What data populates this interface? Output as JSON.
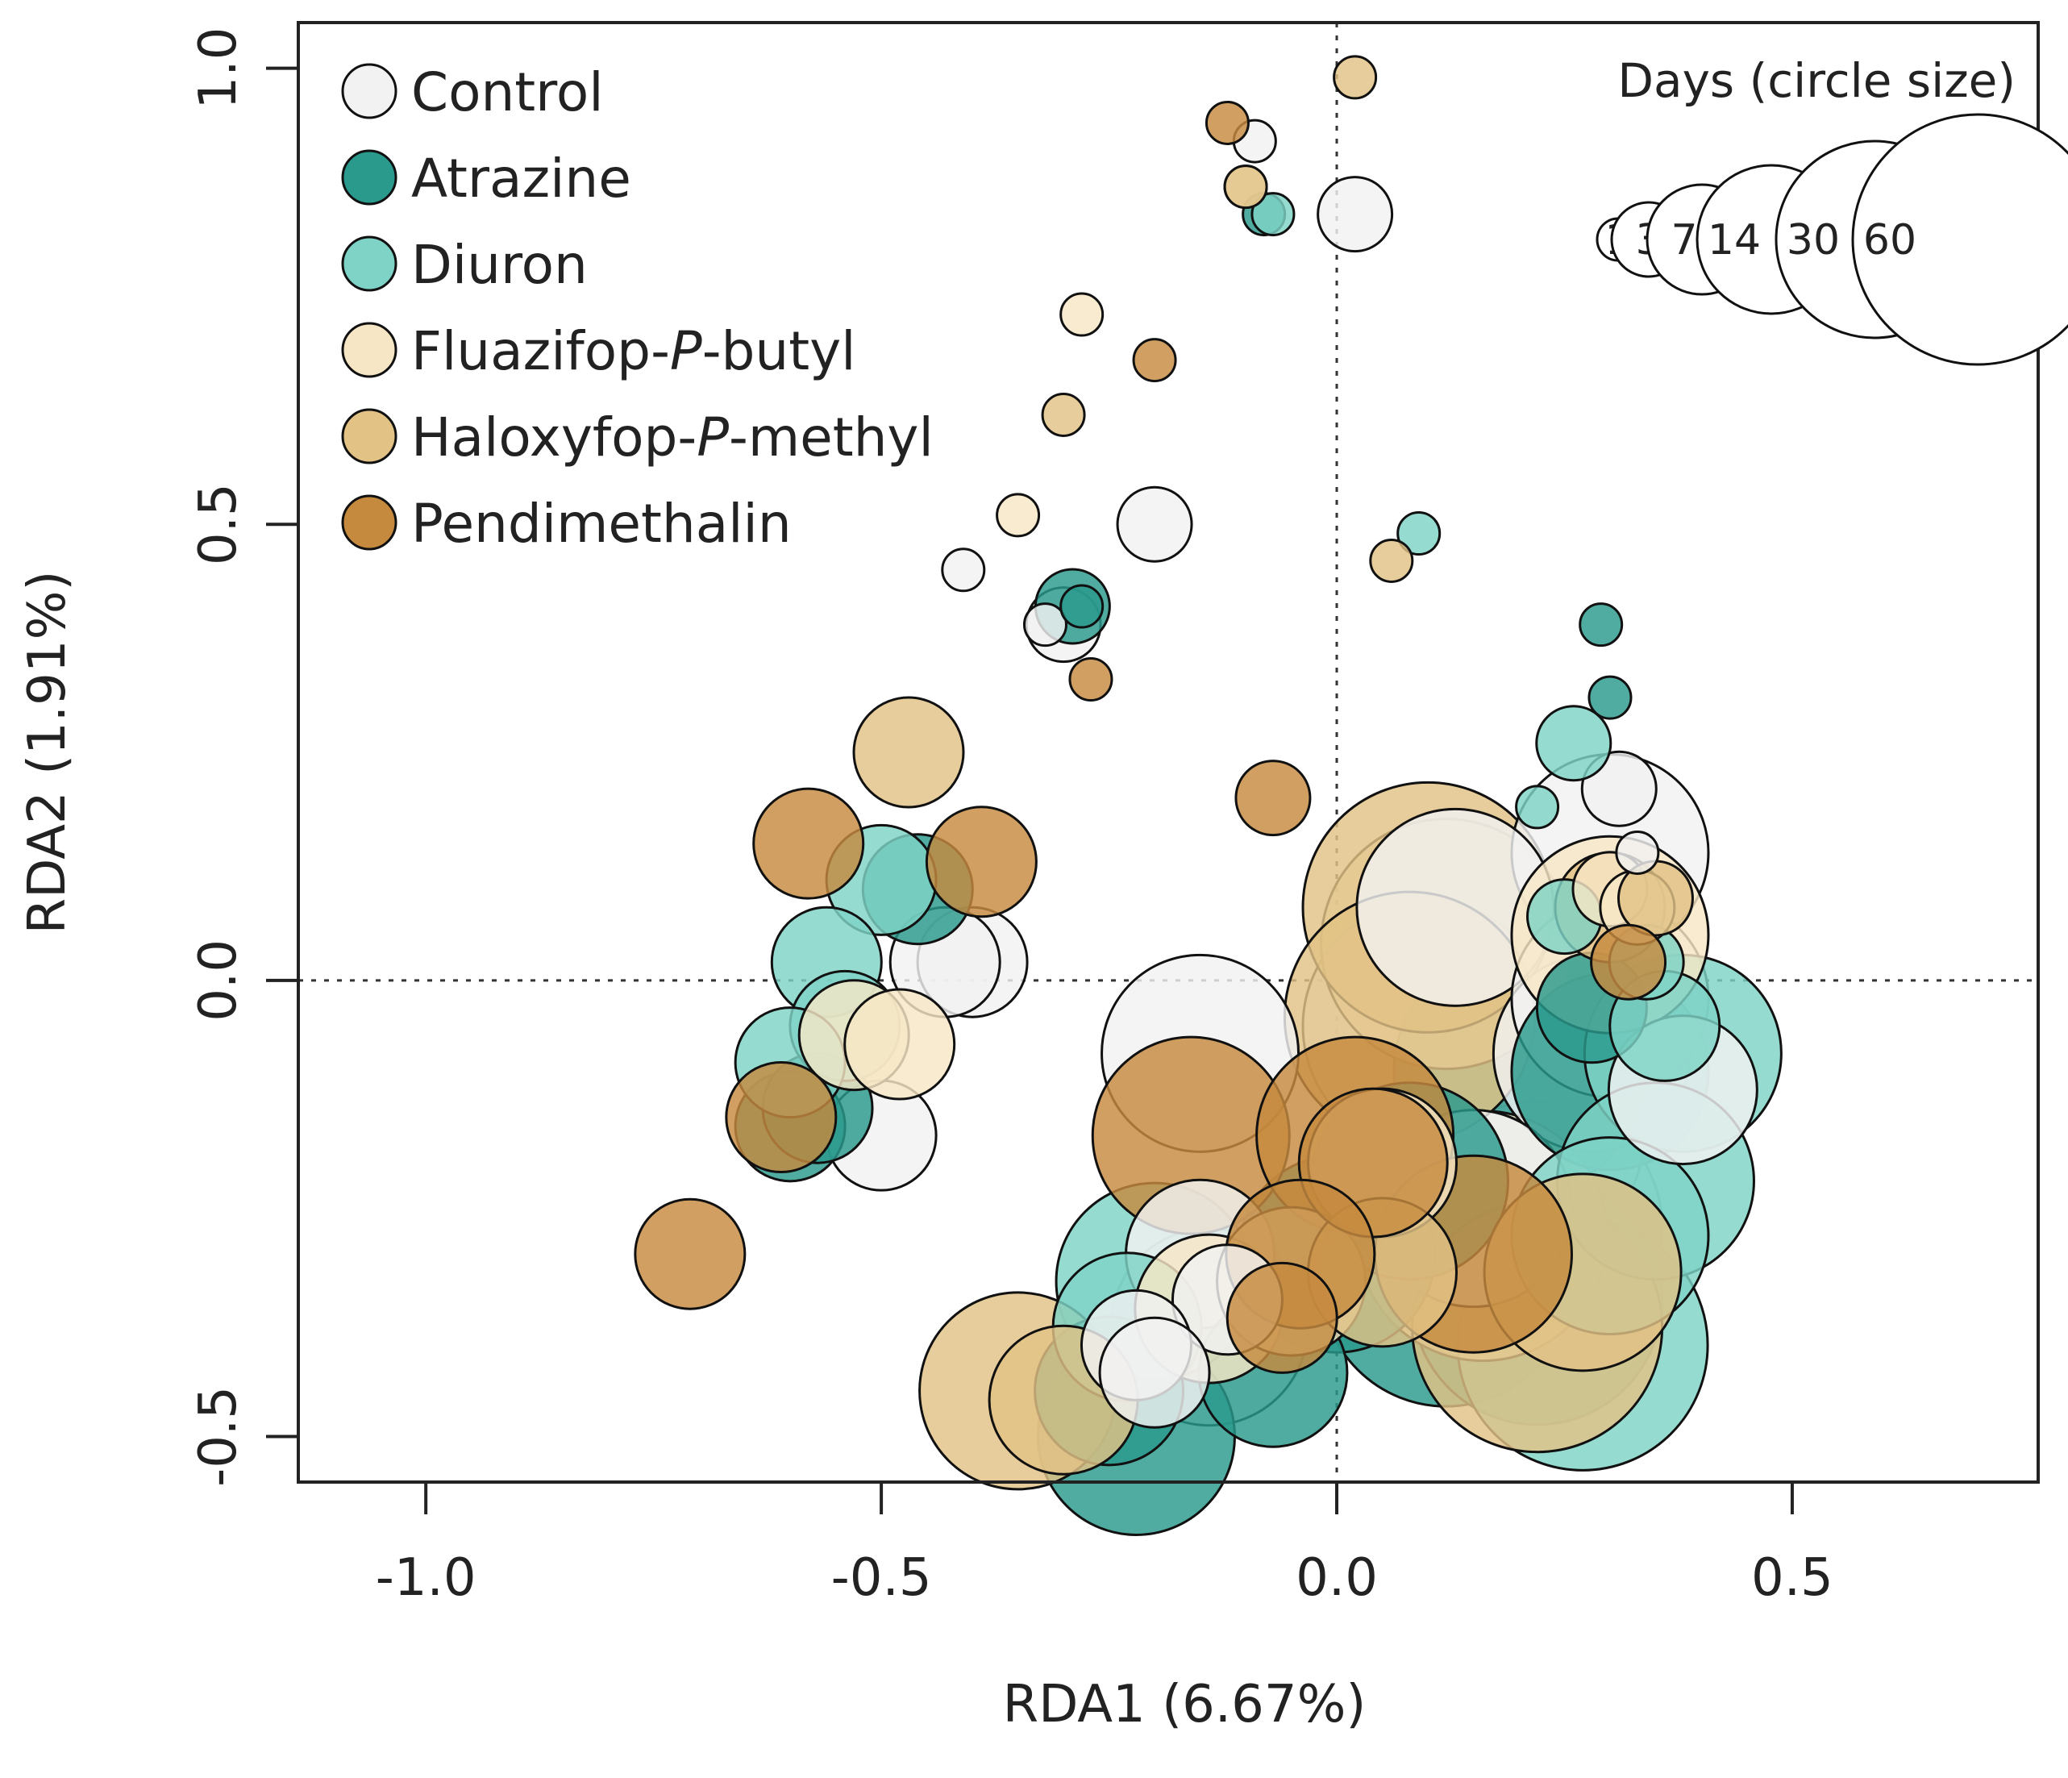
{
  "chart_data": {
    "type": "scatter",
    "xlabel": "RDA1 (6.67%)",
    "ylabel": "RDA2 (1.91%)",
    "xlim": [
      -1.14,
      0.77
    ],
    "ylim": [
      -0.55,
      1.05
    ],
    "x_ticks": [
      {
        "value": -1.0,
        "label": "-1.0"
      },
      {
        "value": -0.5,
        "label": "-0.5"
      },
      {
        "value": 0.0,
        "label": "0.0"
      },
      {
        "value": 0.5,
        "label": "0.5"
      }
    ],
    "y_ticks": [
      {
        "value": -0.5,
        "label": "-0.5"
      },
      {
        "value": 0.0,
        "label": "0.0"
      },
      {
        "value": 0.5,
        "label": "0.5"
      },
      {
        "value": 1.0,
        "label": "1.0"
      }
    ],
    "reference_lines": {
      "x": 0.0,
      "y": 0.0
    },
    "legend": {
      "position": "top-left",
      "entries": [
        {
          "key": "Control",
          "label": "Control",
          "italic": null,
          "color": "#f2f2f2"
        },
        {
          "key": "Atrazine",
          "label": "Atrazine",
          "italic": null,
          "color": "#2a9a8c"
        },
        {
          "key": "Diuron",
          "label": "Diuron",
          "italic": null,
          "color": "#7ed3c6"
        },
        {
          "key": "Fluazifop",
          "label": "Fluazifop-P-butyl",
          "pre": "Fluazifop-",
          "italic": "P",
          "post": "-butyl",
          "color": "#f6e6c6"
        },
        {
          "key": "Haloxyfop",
          "label": "Haloxyfop-P-methyl",
          "pre": "Haloxyfop-",
          "italic": "P",
          "post": "-methyl",
          "color": "#e2c285"
        },
        {
          "key": "Pendimethalin",
          "label": "Pendimethalin",
          "italic": null,
          "color": "#c68a3e"
        }
      ]
    },
    "size_legend": {
      "title": "Days (circle size)",
      "position": "top-right",
      "days": [
        1,
        3,
        7,
        14,
        30,
        60
      ]
    },
    "series": [
      {
        "name": "Control",
        "points": [
          {
            "x": 0.02,
            "y": 0.84,
            "day": 3
          },
          {
            "x": -0.09,
            "y": 0.92,
            "day": 1
          },
          {
            "x": -0.2,
            "y": 0.5,
            "day": 3
          },
          {
            "x": -0.41,
            "y": 0.45,
            "day": 1
          },
          {
            "x": -0.32,
            "y": 0.39,
            "day": 1
          },
          {
            "x": -0.3,
            "y": 0.39,
            "day": 3
          },
          {
            "x": 0.31,
            "y": 0.21,
            "day": 3
          },
          {
            "x": 0.3,
            "y": 0.14,
            "day": 30
          },
          {
            "x": 0.33,
            "y": 0.14,
            "day": 1
          },
          {
            "x": -0.4,
            "y": 0.02,
            "day": 7
          },
          {
            "x": -0.43,
            "y": 0.02,
            "day": 7
          },
          {
            "x": -0.15,
            "y": -0.08,
            "day": 30
          },
          {
            "x": -0.5,
            "y": -0.17,
            "day": 7
          },
          {
            "x": 0.13,
            "y": 0.08,
            "day": 30
          },
          {
            "x": 0.1,
            "y": -0.05,
            "day": 60
          },
          {
            "x": 0.2,
            "y": -0.1,
            "day": 60
          },
          {
            "x": 0.28,
            "y": -0.08,
            "day": 30
          },
          {
            "x": 0.3,
            "y": -0.02,
            "day": 30
          },
          {
            "x": 0.38,
            "y": -0.12,
            "day": 14
          },
          {
            "x": 0.15,
            "y": -0.25,
            "day": 30
          },
          {
            "x": 0.22,
            "y": -0.27,
            "day": 60
          },
          {
            "x": 0.2,
            "y": -0.17,
            "day": 60
          },
          {
            "x": -0.15,
            "y": -0.3,
            "day": 14
          },
          {
            "x": -0.12,
            "y": -0.35,
            "day": 7
          },
          {
            "x": -0.14,
            "y": -0.38,
            "day": 30
          },
          {
            "x": -0.22,
            "y": -0.4,
            "day": 7
          },
          {
            "x": -0.2,
            "y": -0.43,
            "day": 7
          }
        ]
      },
      {
        "name": "Atrazine",
        "points": [
          {
            "x": -0.08,
            "y": 0.84,
            "day": 1
          },
          {
            "x": -0.29,
            "y": 0.41,
            "day": 3
          },
          {
            "x": -0.28,
            "y": 0.41,
            "day": 1
          },
          {
            "x": 0.29,
            "y": 0.39,
            "day": 1
          },
          {
            "x": 0.3,
            "y": 0.31,
            "day": 1
          },
          {
            "x": -0.46,
            "y": 0.1,
            "day": 7
          },
          {
            "x": 0.28,
            "y": -0.03,
            "day": 7
          },
          {
            "x": 0.2,
            "y": -0.1,
            "day": 60
          },
          {
            "x": 0.3,
            "y": -0.1,
            "day": 30
          },
          {
            "x": -0.6,
            "y": -0.16,
            "day": 7
          },
          {
            "x": -0.57,
            "y": -0.14,
            "day": 7
          },
          {
            "x": 0.0,
            "y": -0.3,
            "day": 30
          },
          {
            "x": 0.08,
            "y": -0.22,
            "day": 30
          },
          {
            "x": 0.12,
            "y": -0.33,
            "day": 60
          },
          {
            "x": 0.22,
            "y": -0.35,
            "day": 60
          },
          {
            "x": -0.22,
            "y": -0.5,
            "day": 30
          },
          {
            "x": -0.25,
            "y": -0.45,
            "day": 14
          },
          {
            "x": -0.07,
            "y": -0.43,
            "day": 14
          }
        ]
      },
      {
        "name": "Diuron",
        "points": [
          {
            "x": -0.07,
            "y": 0.84,
            "day": 1
          },
          {
            "x": 0.09,
            "y": 0.49,
            "day": 1
          },
          {
            "x": 0.26,
            "y": 0.26,
            "day": 3
          },
          {
            "x": 0.22,
            "y": 0.19,
            "day": 1
          },
          {
            "x": 0.25,
            "y": 0.07,
            "day": 3
          },
          {
            "x": 0.34,
            "y": 0.02,
            "day": 3
          },
          {
            "x": 0.36,
            "y": -0.05,
            "day": 7
          },
          {
            "x": -0.5,
            "y": 0.11,
            "day": 7
          },
          {
            "x": -0.56,
            "y": 0.02,
            "day": 7
          },
          {
            "x": -0.54,
            "y": -0.05,
            "day": 7
          },
          {
            "x": -0.6,
            "y": -0.09,
            "day": 7
          },
          {
            "x": 0.38,
            "y": -0.08,
            "day": 30
          },
          {
            "x": 0.35,
            "y": -0.22,
            "day": 30
          },
          {
            "x": 0.27,
            "y": -0.4,
            "day": 60
          },
          {
            "x": 0.3,
            "y": -0.28,
            "day": 30
          },
          {
            "x": -0.2,
            "y": -0.33,
            "day": 30
          },
          {
            "x": -0.23,
            "y": -0.38,
            "day": 14
          }
        ]
      },
      {
        "name": "Fluazifop",
        "points": [
          {
            "x": -0.28,
            "y": 0.73,
            "day": 1
          },
          {
            "x": -0.35,
            "y": 0.51,
            "day": 1
          },
          {
            "x": -0.1,
            "y": 0.87,
            "day": 1
          },
          {
            "x": 0.3,
            "y": 0.1,
            "day": 3
          },
          {
            "x": 0.33,
            "y": 0.08,
            "day": 3
          },
          {
            "x": -0.53,
            "y": -0.06,
            "day": 7
          },
          {
            "x": -0.48,
            "y": -0.07,
            "day": 7
          },
          {
            "x": 0.05,
            "y": -0.2,
            "day": 14
          },
          {
            "x": 0.12,
            "y": 0.04,
            "day": 60
          },
          {
            "x": 0.16,
            "y": -0.28,
            "day": 60
          },
          {
            "x": 0.3,
            "y": 0.05,
            "day": 30
          },
          {
            "x": -0.14,
            "y": -0.36,
            "day": 14
          },
          {
            "x": -0.05,
            "y": -0.33,
            "day": 14
          }
        ]
      },
      {
        "name": "Haloxyfop",
        "points": [
          {
            "x": 0.02,
            "y": 0.99,
            "day": 1
          },
          {
            "x": -0.1,
            "y": 0.87,
            "day": 1
          },
          {
            "x": -0.3,
            "y": 0.62,
            "day": 1
          },
          {
            "x": 0.06,
            "y": 0.46,
            "day": 1
          },
          {
            "x": -0.47,
            "y": 0.25,
            "day": 7
          },
          {
            "x": 0.3,
            "y": 0.08,
            "day": 7
          },
          {
            "x": 0.35,
            "y": 0.09,
            "day": 3
          },
          {
            "x": 0.1,
            "y": 0.08,
            "day": 60
          },
          {
            "x": 0.08,
            "y": -0.04,
            "day": 60
          },
          {
            "x": -0.35,
            "y": -0.45,
            "day": 30
          },
          {
            "x": -0.3,
            "y": -0.46,
            "day": 14
          },
          {
            "x": 0.22,
            "y": -0.38,
            "day": 60
          },
          {
            "x": 0.27,
            "y": -0.32,
            "day": 30
          },
          {
            "x": 0.05,
            "y": -0.32,
            "day": 14
          }
        ]
      },
      {
        "name": "Pendimethalin",
        "points": [
          {
            "x": -0.12,
            "y": 0.94,
            "day": 1
          },
          {
            "x": -0.2,
            "y": 0.68,
            "day": 1
          },
          {
            "x": -0.27,
            "y": 0.33,
            "day": 1
          },
          {
            "x": -0.07,
            "y": 0.2,
            "day": 3
          },
          {
            "x": -0.39,
            "y": 0.13,
            "day": 7
          },
          {
            "x": -0.58,
            "y": 0.15,
            "day": 7
          },
          {
            "x": 0.32,
            "y": 0.02,
            "day": 3
          },
          {
            "x": -0.16,
            "y": -0.17,
            "day": 30
          },
          {
            "x": -0.61,
            "y": -0.15,
            "day": 7
          },
          {
            "x": -0.71,
            "y": -0.3,
            "day": 7
          },
          {
            "x": 0.02,
            "y": -0.17,
            "day": 30
          },
          {
            "x": 0.04,
            "y": -0.2,
            "day": 14
          },
          {
            "x": 0.15,
            "y": -0.3,
            "day": 30
          },
          {
            "x": -0.06,
            "y": -0.37,
            "day": 7
          },
          {
            "x": -0.04,
            "y": -0.3,
            "day": 14
          }
        ]
      }
    ]
  }
}
